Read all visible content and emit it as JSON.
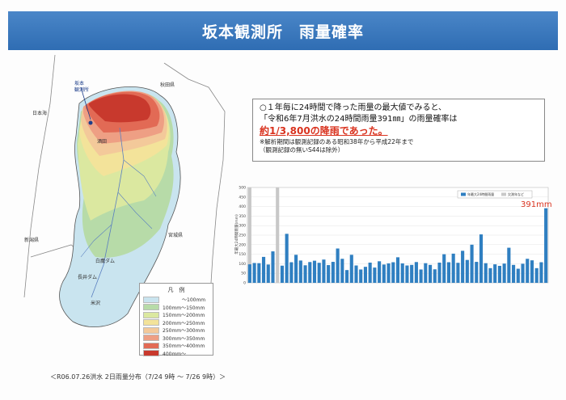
{
  "title": "坂本観測所　雨量確率",
  "map": {
    "callout": [
      "坂本",
      "観測所"
    ],
    "places": [
      {
        "name": "日本海"
      },
      {
        "name": "秋田県"
      },
      {
        "name": "新潟県"
      },
      {
        "name": "宮城県"
      },
      {
        "name": "酒田"
      },
      {
        "name": "長井ダム"
      },
      {
        "name": "白鷹ダム"
      },
      {
        "name": "米沢"
      }
    ]
  },
  "legend": {
    "title": "凡　例",
    "items": [
      {
        "label": "　　　　～100mm",
        "color": "#c9e4ef"
      },
      {
        "label": "100mm～150mm",
        "color": "#b7dba8"
      },
      {
        "label": "150mm～200mm",
        "color": "#dbe8a0"
      },
      {
        "label": "200mm～250mm",
        "color": "#f3e39a"
      },
      {
        "label": "250mm～300mm",
        "color": "#f3c99a"
      },
      {
        "label": "300mm～350mm",
        "color": "#ee9f84"
      },
      {
        "label": "350mm～400mm",
        "color": "#e26a55"
      },
      {
        "label": "400mm～",
        "color": "#c8392d"
      }
    ]
  },
  "caption": "＜R06.07.26洪水 2日雨量分布（7/24 9時 ～ 7/26 9時）＞",
  "textbox": {
    "line1": "○１年毎に24時間で降った雨量の最大値でみると、",
    "line2": "「令和6年7月洪水の24時間雨量391㎜」の雨量確率は",
    "emphasis": "約1/3,800の降雨であった。",
    "note1": "※解析期間は観測記録のある昭和38年から平成22年まで",
    "note2": "（観測記録の無いS44は除外）"
  },
  "chart_data": {
    "type": "bar",
    "ylabel": "年最大24時間雨量(mm)",
    "ylim": [
      0,
      500
    ],
    "yticks": [
      0,
      50,
      100,
      150,
      200,
      250,
      300,
      350,
      400,
      450,
      500
    ],
    "legend": [
      {
        "label": "年最大24時間雨量",
        "color": "#2f7fc1"
      },
      {
        "label": "欠測年など",
        "color": "#c8c8c8"
      }
    ],
    "legend_position": "top-right",
    "annotation": "391mm",
    "highlight_color": "#d9321e",
    "bar_color": "#2f7fc1",
    "missing_color": "#c8c8c8",
    "values": [
      97,
      104,
      103,
      136,
      96,
      165,
      null,
      90,
      257,
      108,
      147,
      117,
      92,
      109,
      116,
      105,
      122,
      93,
      110,
      180,
      126,
      67,
      147,
      91,
      70,
      84,
      106,
      80,
      113,
      96,
      102,
      108,
      134,
      102,
      91,
      94,
      109,
      70,
      103,
      94,
      71,
      106,
      150,
      108,
      153,
      105,
      168,
      120,
      200,
      110,
      254,
      103,
      77,
      97,
      89,
      101,
      184,
      94,
      74,
      100,
      126,
      118,
      77,
      108,
      391
    ],
    "grey_markers": [
      0,
      6
    ]
  }
}
